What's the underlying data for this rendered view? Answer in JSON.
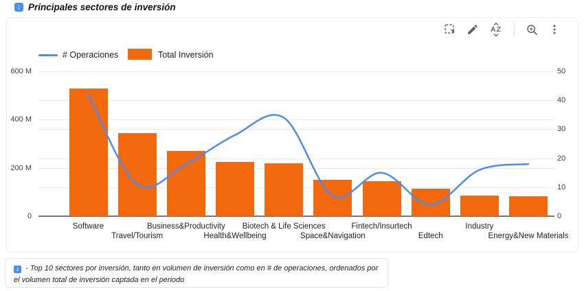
{
  "header": {
    "title": "Principales sectores de inversión",
    "icon_glyph": "↓"
  },
  "toolbar": {
    "sort_label": "AZ"
  },
  "legend": {
    "line_label": "# Operaciones",
    "bar_label": "Total Inversión"
  },
  "chart_data": {
    "type": "combo",
    "title": "Principales sectores de inversión",
    "categories": [
      "Software",
      "Travel/Tourism",
      "Business&Productivity",
      "Health&Wellbeing",
      "Biotech & Life Sciences",
      "Space&Navigation",
      "Fintech/Insurtech",
      "Edtech",
      "Industry",
      "Energy&New Materials"
    ],
    "series": [
      {
        "name": "# Operaciones",
        "type": "line",
        "axis": "right",
        "color": "#4c8bf5",
        "values": [
          42,
          11,
          18,
          28,
          34,
          7,
          15,
          4,
          16,
          18
        ]
      },
      {
        "name": "Total Inversión",
        "type": "bar",
        "axis": "left",
        "color": "#f2690d",
        "values_millions": [
          530,
          345,
          270,
          225,
          220,
          150,
          145,
          115,
          85,
          82
        ]
      }
    ],
    "left_axis": {
      "max_millions": 600,
      "ticks": [
        {
          "value": 0,
          "label": "0"
        },
        {
          "value": 200,
          "label": "200 M"
        },
        {
          "value": 400,
          "label": "400 M"
        },
        {
          "value": 600,
          "label": "600 M"
        }
      ]
    },
    "right_axis": {
      "max": 50,
      "ticks": [
        {
          "value": 0,
          "label": "0"
        },
        {
          "value": 10,
          "label": "10"
        },
        {
          "value": 20,
          "label": "20"
        },
        {
          "value": 30,
          "label": "30"
        },
        {
          "value": 40,
          "label": "40"
        },
        {
          "value": 50,
          "label": "50"
        }
      ]
    },
    "grid": true,
    "legend_position": "top-left"
  },
  "footnote": {
    "icon_glyph": "i",
    "text": "- Top 10 sectores por inversión, tanto en volumen de inversión como en # de operaciones, ordenados por el volumen total de inversión captada en el periodo"
  },
  "colors": {
    "bar": "#f2690d",
    "line": "#4c8bf5",
    "accent_blue": "#4d90e8",
    "grid": "#e9e9e9",
    "axis_baseline": "#757575"
  }
}
